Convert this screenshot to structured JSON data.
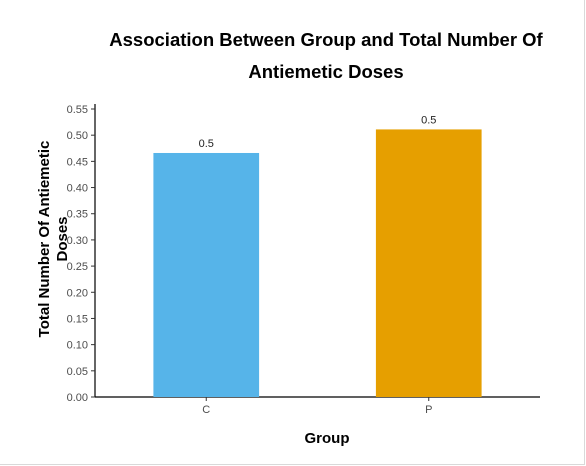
{
  "chart_data": {
    "type": "bar",
    "title_lines": [
      "Association Between Group and Total Number Of",
      "Antiemetic Doses"
    ],
    "xlabel": "Group",
    "ylabel_lines": [
      "Total Number Of Antiemetic",
      "Doses"
    ],
    "categories": [
      "C",
      "P"
    ],
    "values": [
      0.466,
      0.511
    ],
    "data_labels": [
      "0.5",
      "0.5"
    ],
    "colors": [
      "#56B4E9",
      "#E69F00"
    ],
    "ylim": [
      0,
      0.55
    ],
    "yticks": [
      "0.00",
      "0.05",
      "0.10",
      "0.15",
      "0.20",
      "0.25",
      "0.30",
      "0.35",
      "0.40",
      "0.45",
      "0.50",
      "0.55"
    ],
    "grid": false,
    "legend": "none"
  }
}
